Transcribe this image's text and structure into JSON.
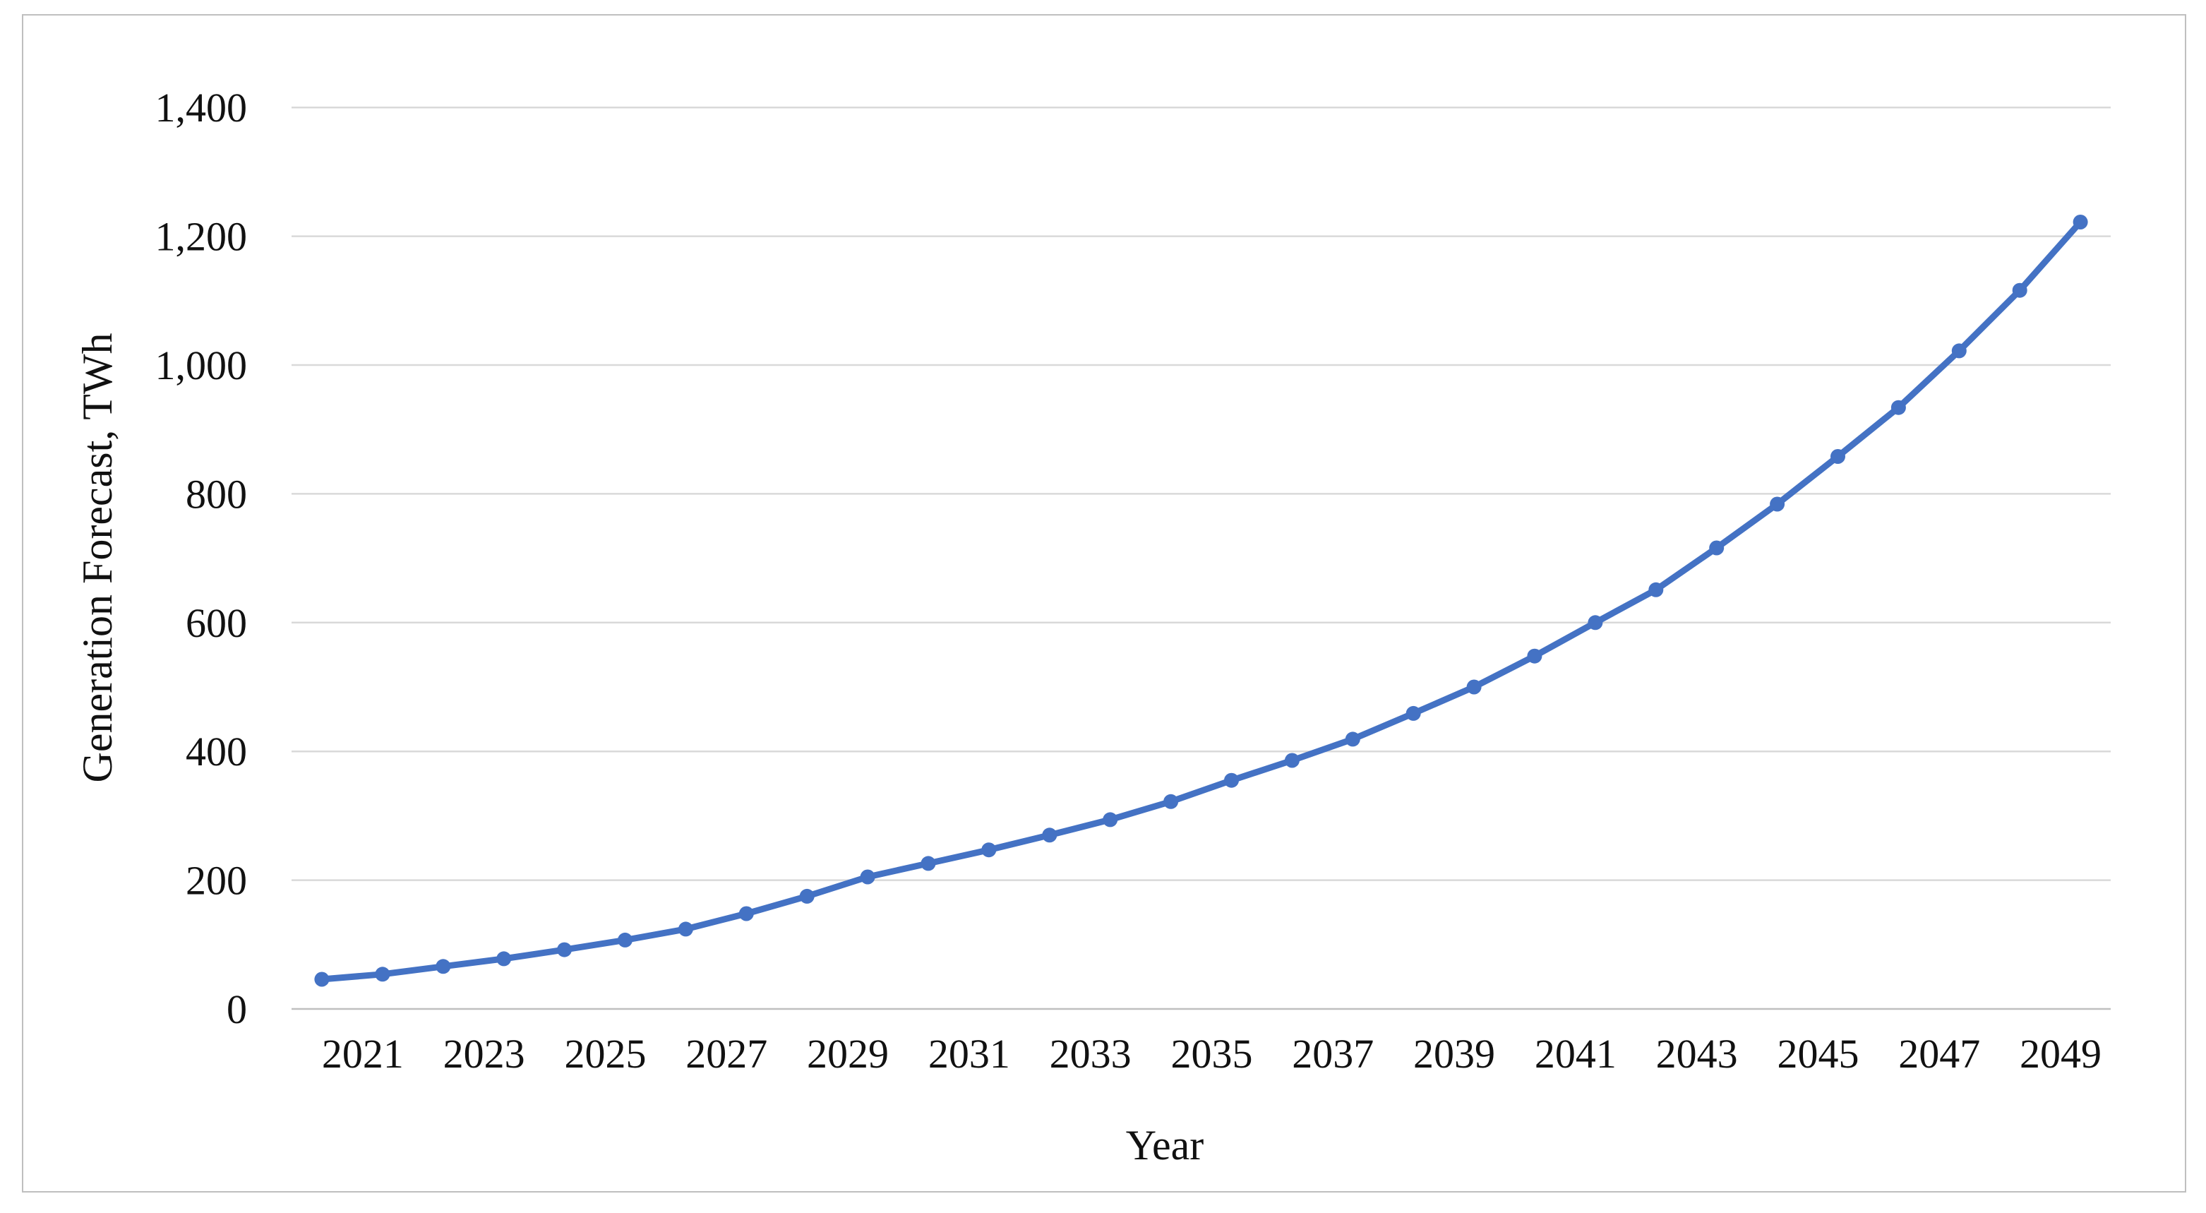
{
  "figure": {
    "background": "#ffffff",
    "border_color": "#bfbfbf"
  },
  "chart_data": {
    "type": "line",
    "xlabel": "Year",
    "ylabel": "Generation Forecast, TWh",
    "x": [
      2020,
      2021,
      2022,
      2023,
      2024,
      2025,
      2026,
      2027,
      2028,
      2029,
      2030,
      2031,
      2032,
      2033,
      2034,
      2035,
      2036,
      2037,
      2038,
      2039,
      2040,
      2041,
      2042,
      2043,
      2044,
      2045,
      2046,
      2047,
      2048,
      2049
    ],
    "values": [
      46,
      54,
      66,
      78,
      92,
      107,
      124,
      148,
      175,
      205,
      226,
      247,
      270,
      294,
      322,
      355,
      386,
      419,
      459,
      500,
      548,
      600,
      651,
      716,
      784,
      858,
      934,
      1022,
      1116,
      1222
    ],
    "x_tick_labels": [
      "2021",
      "2023",
      "2025",
      "2027",
      "2029",
      "2031",
      "2033",
      "2035",
      "2037",
      "2039",
      "2041",
      "2043",
      "2045",
      "2047",
      "2049"
    ],
    "y_ticks": [
      0,
      200,
      400,
      600,
      800,
      1000,
      1200,
      1400
    ],
    "y_tick_labels": [
      "0",
      "200",
      "400",
      "600",
      "800",
      "1,000",
      "1,200",
      "1,400"
    ],
    "ylim": [
      0,
      1400
    ],
    "grid": "horizontal",
    "legend_position": "none",
    "line_color": "#4472c4",
    "marker_color": "#4472c4",
    "marker_style": "circle",
    "gridline_color": "#d9d9d9",
    "axis_line_color": "#bfbfbf",
    "text_color": "#111111"
  }
}
